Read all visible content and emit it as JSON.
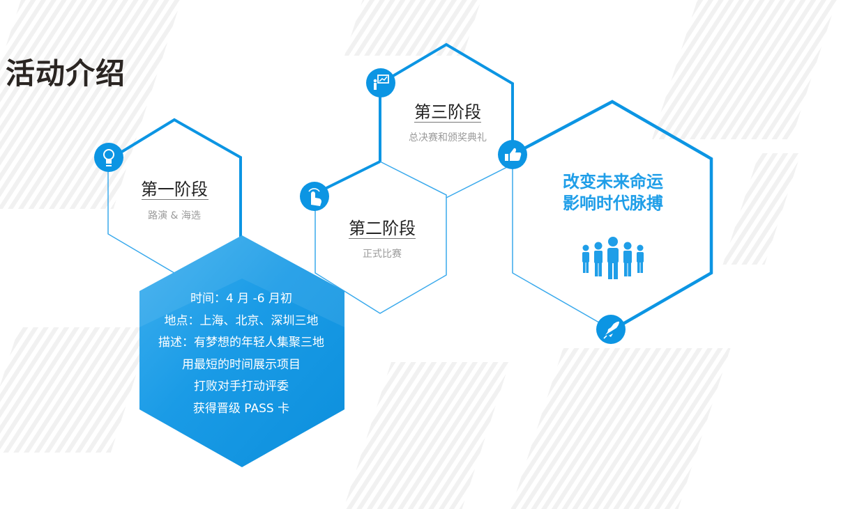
{
  "page_title": "活动介绍",
  "colors": {
    "accent": "#0c95e3",
    "accent_light": "#2aa4ec",
    "title": "#2a2522",
    "slogan": "#1f9ee8"
  },
  "stages": [
    {
      "title": "第一阶段",
      "subtitle": "路演 & 海选",
      "icon": "lightbulb-icon"
    },
    {
      "title": "第二阶段",
      "subtitle": "正式比赛",
      "icon": "pointer-hand-icon"
    },
    {
      "title": "第三阶段",
      "subtitle": "总决赛和颁奖典礼",
      "icon": "presentation-icon"
    }
  ],
  "details": [
    "时间：4 月 -6 月初",
    "地点：上海、北京、深圳三地",
    "描述：有梦想的年轻人集聚三地",
    "用最短的时间展示项目",
    "打败对手打动评委",
    "获得晋级 PASS 卡"
  ],
  "slogan": {
    "line1": "改变未来命运",
    "line2": "影响时代脉搏",
    "icons": [
      "thumbs-up-icon",
      "people-group-icon",
      "rocket-icon"
    ]
  }
}
